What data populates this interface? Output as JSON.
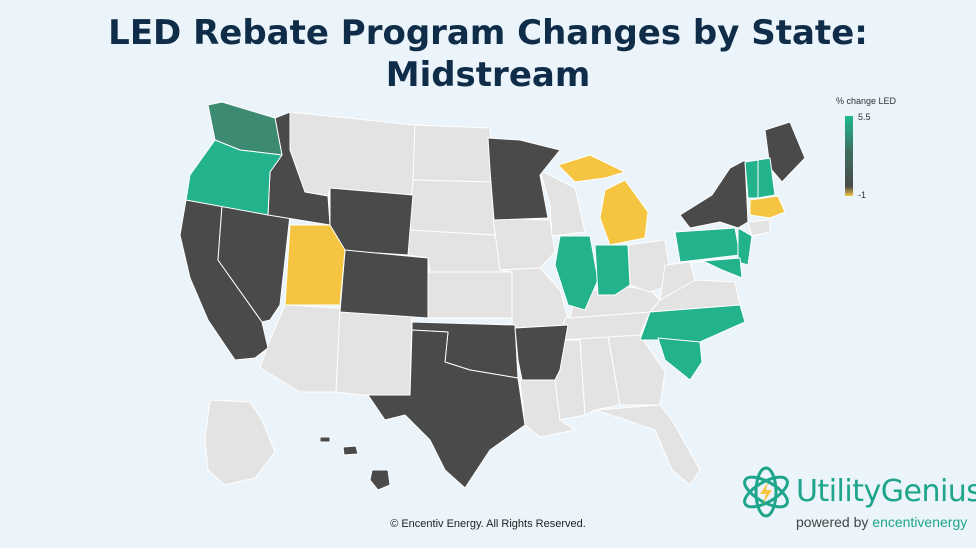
{
  "title": {
    "line1": "LED Rebate Program Changes by State:",
    "line2": "Midstream"
  },
  "legend": {
    "title": "% change LED",
    "max": "5.5",
    "min": "-1",
    "colors": {
      "high": "#1fb88f",
      "mid": "#4a4a4a",
      "low": "#f5c542",
      "none": "#e3e3e3"
    }
  },
  "states": [
    {
      "name": "Washington",
      "category": "high-mid"
    },
    {
      "name": "Oregon",
      "category": "high"
    },
    {
      "name": "California",
      "category": "mid"
    },
    {
      "name": "Nevada",
      "category": "mid"
    },
    {
      "name": "Idaho",
      "category": "mid"
    },
    {
      "name": "Utah",
      "category": "low"
    },
    {
      "name": "Wyoming",
      "category": "mid"
    },
    {
      "name": "Colorado",
      "category": "mid"
    },
    {
      "name": "Minnesota",
      "category": "mid"
    },
    {
      "name": "Oklahoma",
      "category": "mid"
    },
    {
      "name": "Texas",
      "category": "mid"
    },
    {
      "name": "Arkansas",
      "category": "mid"
    },
    {
      "name": "Illinois",
      "category": "high"
    },
    {
      "name": "Indiana",
      "category": "high"
    },
    {
      "name": "Michigan",
      "category": "low"
    },
    {
      "name": "New York",
      "category": "mid"
    },
    {
      "name": "Maine",
      "category": "mid"
    },
    {
      "name": "Vermont",
      "category": "high"
    },
    {
      "name": "New Hampshire",
      "category": "high"
    },
    {
      "name": "Massachusetts",
      "category": "low"
    },
    {
      "name": "Pennsylvania",
      "category": "high"
    },
    {
      "name": "New Jersey",
      "category": "high"
    },
    {
      "name": "Maryland",
      "category": "high"
    },
    {
      "name": "North Carolina",
      "category": "high"
    },
    {
      "name": "South Carolina",
      "category": "high"
    }
  ],
  "copyright": "© Encentiv Energy. All Rights Reserved.",
  "brand": {
    "name": "UtilityGenius",
    "powered_by": "powered by",
    "company": "encentivenergy"
  }
}
